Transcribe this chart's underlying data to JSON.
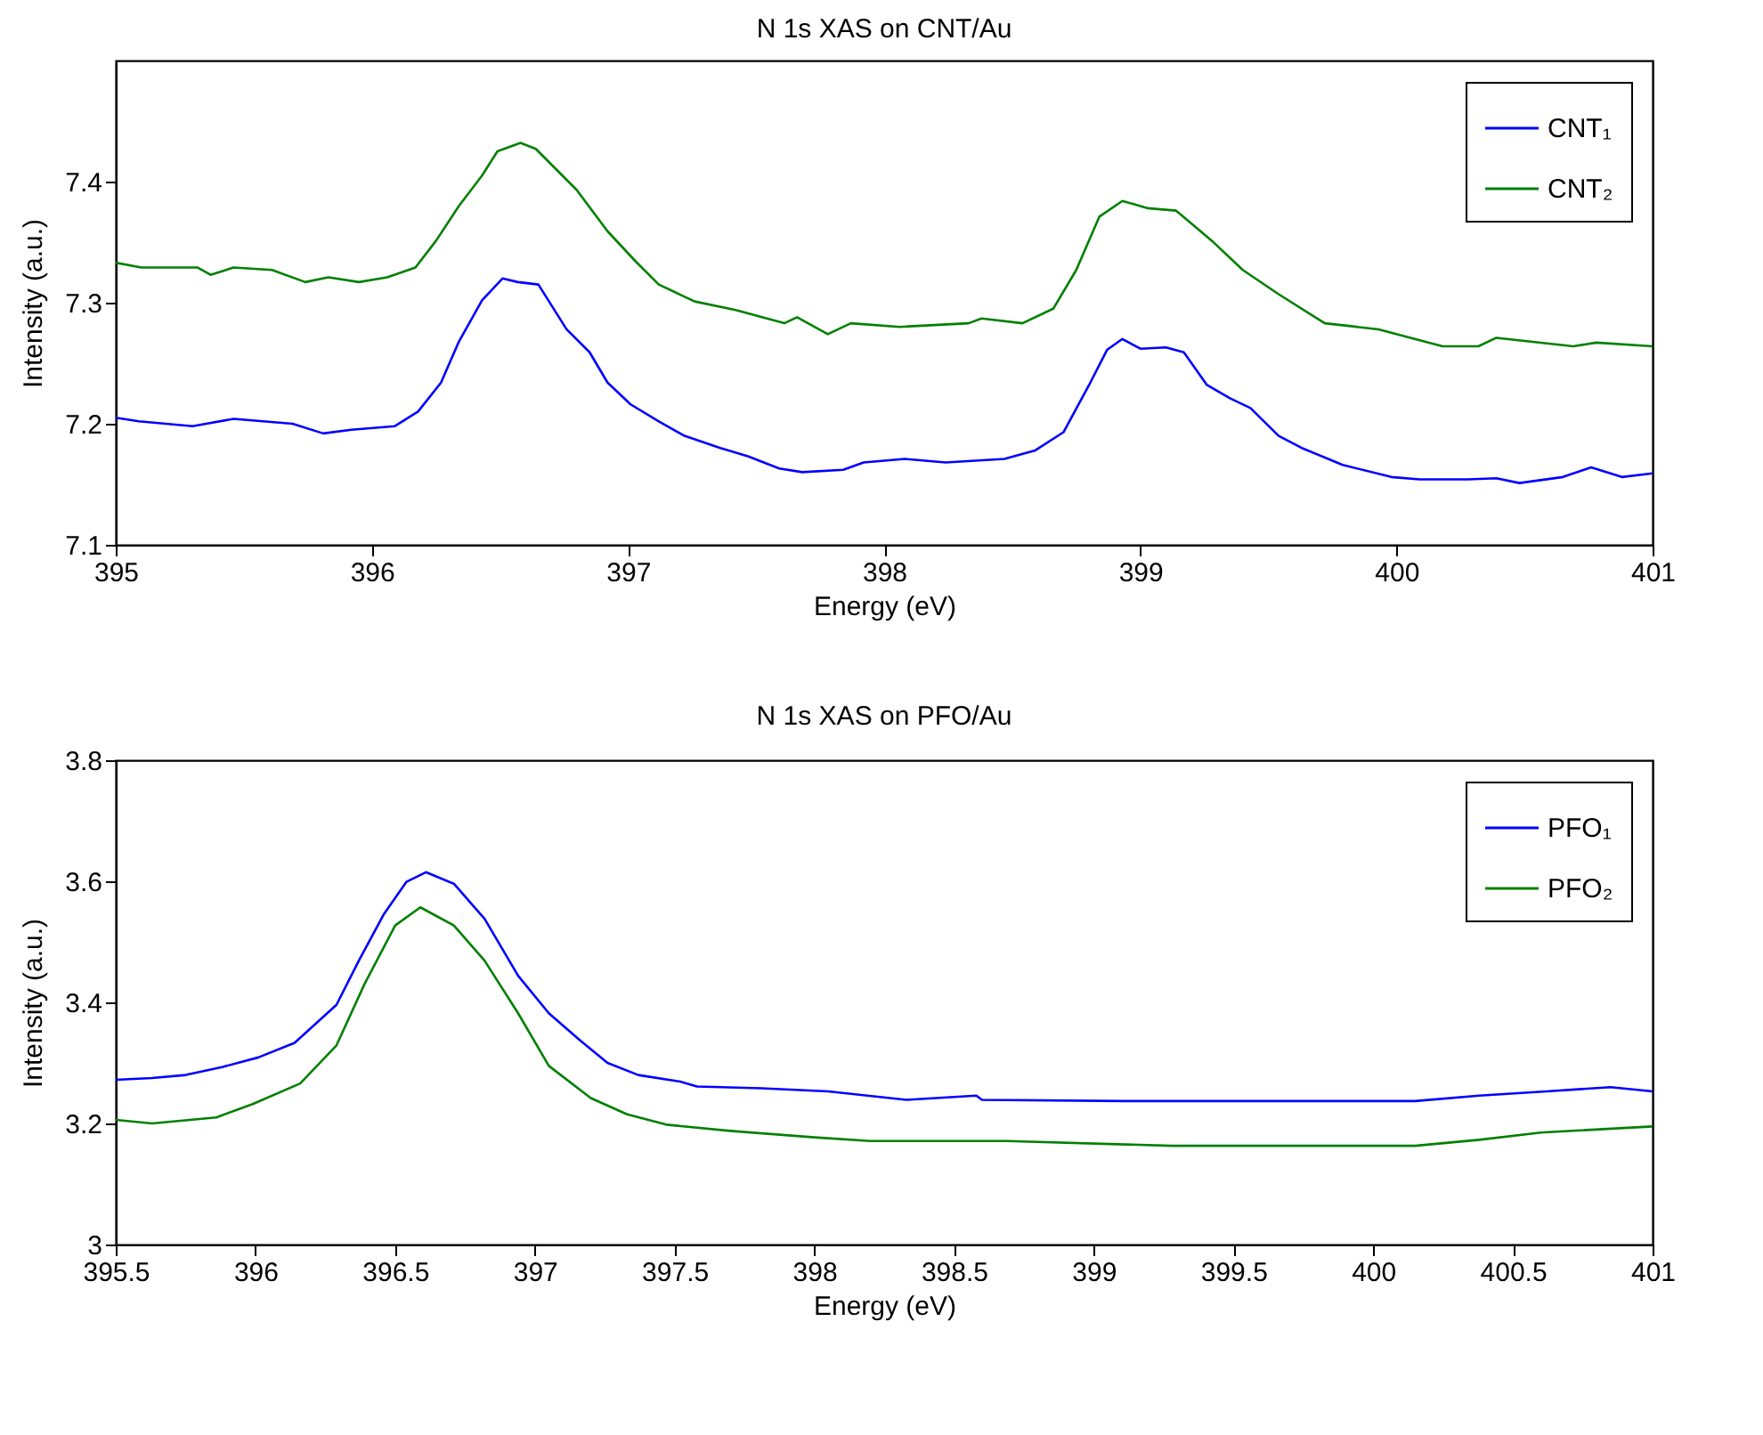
{
  "chart_data": [
    {
      "type": "line",
      "title": "N 1s XAS on CNT/Au",
      "xlabel": "Energy (eV)",
      "ylabel": "Intensity (a.u.)",
      "xlim": [
        395,
        401
      ],
      "xticks": [
        395,
        396,
        397,
        398,
        399,
        400,
        401
      ],
      "ylim": [
        7.1,
        7.5
      ],
      "yticks": [
        7.1,
        7.2,
        7.3,
        7.4
      ],
      "grid": false,
      "legend": "top right",
      "marker": "none",
      "line_style": "solid",
      "series": [
        {
          "name": "CNT₁",
          "color": "#0000ff",
          "x": [
            395,
            395.09,
            395.3,
            395.46,
            395.69,
            395.81,
            395.92,
            396.09,
            396.18,
            396.27,
            396.34,
            396.43,
            396.51,
            396.57,
            396.65,
            396.76,
            396.85,
            396.92,
            397.01,
            397.12,
            397.22,
            397.36,
            397.47,
            397.59,
            397.68,
            397.84,
            397.92,
            398.08,
            398.24,
            398.47,
            398.59,
            398.7,
            398.8,
            398.87,
            398.93,
            399,
            399.1,
            399.17,
            399.26,
            399.35,
            399.43,
            399.54,
            399.63,
            399.79,
            399.98,
            400.09,
            400.28,
            400.39,
            400.48,
            400.65,
            400.76,
            400.88,
            401
          ],
          "values": [
            7.205,
            7.202,
            7.198,
            7.204,
            7.2,
            7.192,
            7.195,
            7.198,
            7.21,
            7.234,
            7.268,
            7.302,
            7.32,
            7.317,
            7.315,
            7.278,
            7.259,
            7.234,
            7.216,
            7.202,
            7.19,
            7.18,
            7.173,
            7.163,
            7.16,
            7.162,
            7.168,
            7.171,
            7.168,
            7.171,
            7.178,
            7.193,
            7.232,
            7.261,
            7.27,
            7.262,
            7.263,
            7.259,
            7.232,
            7.221,
            7.213,
            7.19,
            7.18,
            7.166,
            7.156,
            7.154,
            7.154,
            7.155,
            7.151,
            7.156,
            7.164,
            7.156,
            7.159
          ]
        },
        {
          "name": "CNT₂",
          "color": "#008000",
          "x": [
            395,
            395.1,
            395.32,
            395.37,
            395.46,
            395.61,
            395.74,
            395.83,
            395.95,
            396.06,
            396.17,
            396.25,
            396.34,
            396.43,
            396.49,
            396.58,
            396.64,
            396.8,
            396.92,
            397.03,
            397.12,
            397.26,
            397.42,
            397.61,
            397.66,
            397.78,
            397.87,
            398.06,
            398.33,
            398.38,
            398.54,
            398.66,
            398.75,
            398.84,
            398.93,
            399.03,
            399.14,
            399.28,
            399.4,
            399.54,
            399.72,
            399.93,
            400.18,
            400.32,
            400.39,
            400.69,
            400.78,
            401
          ],
          "values": [
            7.333,
            7.329,
            7.329,
            7.323,
            7.329,
            7.327,
            7.317,
            7.321,
            7.317,
            7.321,
            7.329,
            7.351,
            7.38,
            7.405,
            7.425,
            7.432,
            7.427,
            7.393,
            7.359,
            7.334,
            7.315,
            7.301,
            7.294,
            7.283,
            7.288,
            7.274,
            7.283,
            7.28,
            7.283,
            7.287,
            7.283,
            7.295,
            7.327,
            7.371,
            7.384,
            7.378,
            7.376,
            7.351,
            7.327,
            7.307,
            7.283,
            7.278,
            7.264,
            7.264,
            7.271,
            7.264,
            7.267,
            7.264
          ]
        }
      ]
    },
    {
      "type": "line",
      "title": "N 1s XAS on PFO/Au",
      "xlabel": "Energy (eV)",
      "ylabel": "Intensity (a.u.)",
      "xlim": [
        395.5,
        401
      ],
      "xticks": [
        395.5,
        396,
        396.5,
        397,
        397.5,
        398,
        398.5,
        399,
        399.5,
        400,
        400.5,
        401
      ],
      "ylim": [
        3,
        3.8
      ],
      "yticks": [
        3,
        3.2,
        3.4,
        3.6,
        3.8
      ],
      "grid": false,
      "legend": "top right",
      "marker": "none",
      "line_style": "solid",
      "series": [
        {
          "name": "PFO₁",
          "color": "#0000ff",
          "x": [
            395.5,
            395.63,
            395.75,
            395.88,
            396.01,
            396.14,
            396.29,
            396.37,
            396.46,
            396.54,
            396.61,
            396.71,
            396.82,
            396.94,
            397.05,
            397.16,
            397.26,
            397.37,
            397.52,
            397.58,
            397.81,
            398.05,
            398.33,
            398.58,
            398.6,
            399.11,
            400.15,
            400.38,
            400.62,
            400.85,
            401
          ],
          "values": [
            3.272,
            3.275,
            3.28,
            3.293,
            3.309,
            3.333,
            3.396,
            3.469,
            3.546,
            3.599,
            3.615,
            3.596,
            3.538,
            3.444,
            3.382,
            3.338,
            3.3,
            3.28,
            3.269,
            3.261,
            3.258,
            3.253,
            3.239,
            3.246,
            3.239,
            3.237,
            3.237,
            3.246,
            3.253,
            3.26,
            3.253
          ]
        },
        {
          "name": "PFO₂",
          "color": "#008000",
          "x": [
            395.5,
            395.63,
            395.86,
            395.99,
            396.16,
            396.29,
            396.39,
            396.5,
            396.59,
            396.71,
            396.82,
            396.94,
            397.05,
            397.2,
            397.33,
            397.47,
            397.69,
            398,
            398.2,
            398.69,
            399.28,
            399.53,
            400.15,
            400.38,
            400.6,
            401
          ],
          "values": [
            3.206,
            3.2,
            3.21,
            3.232,
            3.266,
            3.329,
            3.43,
            3.527,
            3.557,
            3.527,
            3.469,
            3.382,
            3.295,
            3.242,
            3.215,
            3.198,
            3.188,
            3.177,
            3.171,
            3.171,
            3.163,
            3.163,
            3.163,
            3.173,
            3.185,
            3.195
          ]
        }
      ]
    }
  ]
}
